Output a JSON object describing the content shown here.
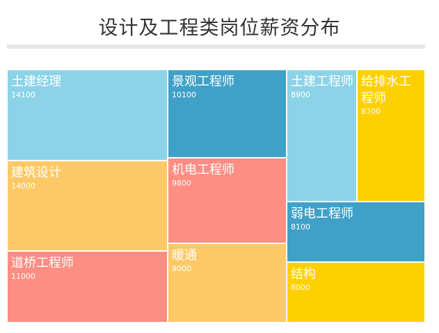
{
  "chart_data": {
    "type": "treemap",
    "title": "设计及工程类岗位薪资分布",
    "items": [
      {
        "name": "土建经理",
        "value": 14100,
        "color": "#8cd3e8"
      },
      {
        "name": "建筑设计",
        "value": 14000,
        "color": "#fdc967"
      },
      {
        "name": "道桥工程师",
        "value": 11000,
        "color": "#fe8d83"
      },
      {
        "name": "景观工程师",
        "value": 10100,
        "color": "#40a1c8"
      },
      {
        "name": "机电工程师",
        "value": 9800,
        "color": "#fe8d83"
      },
      {
        "name": "暖通",
        "value": 9000,
        "color": "#fdc967"
      },
      {
        "name": "土建工程师",
        "value": 8900,
        "color": "#8cd3e8"
      },
      {
        "name": "给排水工程师",
        "value": 8700,
        "color": "#ffd000"
      },
      {
        "name": "弱电工程师",
        "value": 8100,
        "color": "#40a1c8"
      },
      {
        "name": "结构",
        "value": 8000,
        "color": "#ffd000"
      }
    ]
  }
}
